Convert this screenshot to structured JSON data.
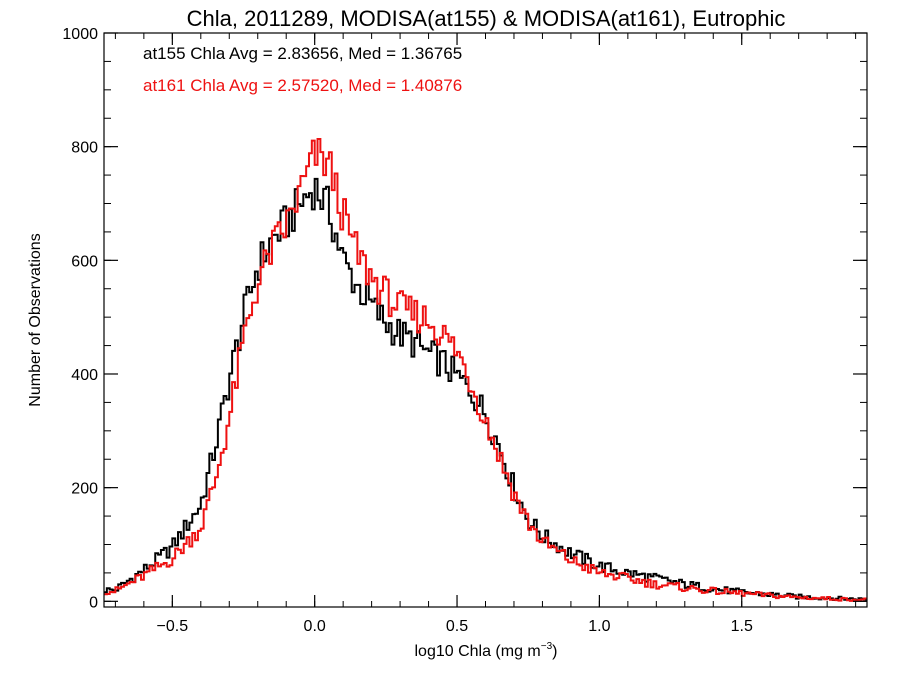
{
  "chart_data": {
    "type": "line",
    "step": true,
    "title": "Chla, 2011289, MODISA(at155) & MODISA(at161), Eutrophic",
    "xlabel": "log10 Chla (mg m",
    "xlabel_sup": "−3",
    "xlabel_end": ")",
    "ylabel": "Number of Observations",
    "xlim": [
      -0.74,
      1.94
    ],
    "ylim": [
      -10,
      1000
    ],
    "x_ticks": [
      -0.5,
      0.0,
      0.5,
      1.0,
      1.5
    ],
    "x_tick_labels": [
      "−0.5",
      "0.0",
      "0.5",
      "1.0",
      "1.5"
    ],
    "y_ticks": [
      0,
      200,
      400,
      600,
      800,
      1000
    ],
    "y_tick_labels": [
      "0",
      "200",
      "400",
      "600",
      "800",
      "1000"
    ],
    "x_minor_step": 0.1,
    "y_minor_step": 50,
    "grid": false,
    "bin_width": 0.01,
    "series": [
      {
        "name": "at155",
        "color": "#000000",
        "x": [
          -0.7,
          -0.6,
          -0.5,
          -0.4,
          -0.35,
          -0.3,
          -0.25,
          -0.2,
          -0.15,
          -0.1,
          -0.05,
          0.0,
          0.05,
          0.1,
          0.15,
          0.2,
          0.25,
          0.3,
          0.35,
          0.4,
          0.45,
          0.5,
          0.55,
          0.6,
          0.65,
          0.7,
          0.75,
          0.8,
          0.9,
          1.0,
          1.1,
          1.2,
          1.3,
          1.4,
          1.5,
          1.6,
          1.7,
          1.8,
          1.9
        ],
        "y": [
          20,
          55,
          95,
          170,
          270,
          390,
          500,
          590,
          635,
          665,
          700,
          730,
          690,
          600,
          555,
          520,
          490,
          470,
          455,
          435,
          420,
          395,
          370,
          330,
          270,
          200,
          145,
          115,
          85,
          62,
          50,
          40,
          30,
          22,
          16,
          12,
          8,
          6,
          4
        ]
      },
      {
        "name": "at161",
        "color": "#ee1111",
        "x": [
          -0.7,
          -0.6,
          -0.5,
          -0.4,
          -0.35,
          -0.3,
          -0.25,
          -0.2,
          -0.15,
          -0.1,
          -0.05,
          0.0,
          0.05,
          0.1,
          0.15,
          0.2,
          0.25,
          0.3,
          0.35,
          0.4,
          0.45,
          0.5,
          0.55,
          0.6,
          0.65,
          0.7,
          0.75,
          0.8,
          0.9,
          1.0,
          1.1,
          1.2,
          1.3,
          1.4,
          1.5,
          1.6,
          1.7,
          1.8,
          1.9
        ],
        "y": [
          18,
          45,
          75,
          130,
          210,
          320,
          460,
          560,
          620,
          660,
          720,
          785,
          770,
          680,
          610,
          570,
          540,
          515,
          505,
          495,
          470,
          440,
          385,
          320,
          255,
          190,
          140,
          105,
          72,
          50,
          40,
          30,
          24,
          18,
          14,
          10,
          7,
          5,
          3
        ]
      }
    ],
    "annotations": [
      {
        "text": "at155 Chla Avg = 2.83656, Med = 1.36765",
        "color": "#000000"
      },
      {
        "text": "at161 Chla Avg = 2.57520, Med = 1.40876",
        "color": "#ee1111"
      }
    ]
  }
}
